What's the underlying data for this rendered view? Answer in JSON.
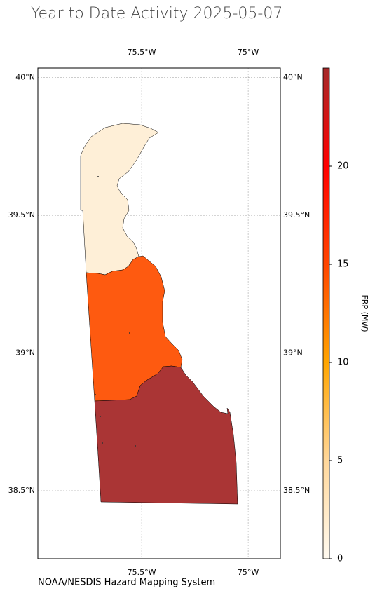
{
  "title": "Year to Date Activity 2025-05-07",
  "footer": "NOAA/NESDIS Hazard Mapping System",
  "map": {
    "xlim": [
      -75.987,
      -74.849
    ],
    "ylim": [
      38.253,
      40.035
    ],
    "xticks": [
      {
        "value": -75.5,
        "label": "75.5°W"
      },
      {
        "value": -75,
        "label": "75°W"
      }
    ],
    "yticks": [
      {
        "value": 40,
        "label": "40°N"
      },
      {
        "value": 39.5,
        "label": "39.5°N"
      },
      {
        "value": 39,
        "label": "39°N"
      },
      {
        "value": 38.5,
        "label": "38.5°N"
      }
    ],
    "grid": true
  },
  "regions": {
    "values": [
      1.5,
      13,
      24
    ],
    "colors": [
      "#feefd7",
      "#fe5a10",
      "#aa3535"
    ]
  },
  "colorbar": {
    "label": "FRP (MW)",
    "lim": [
      0,
      25
    ],
    "ticks": [
      0,
      5,
      10,
      15,
      20
    ]
  }
}
